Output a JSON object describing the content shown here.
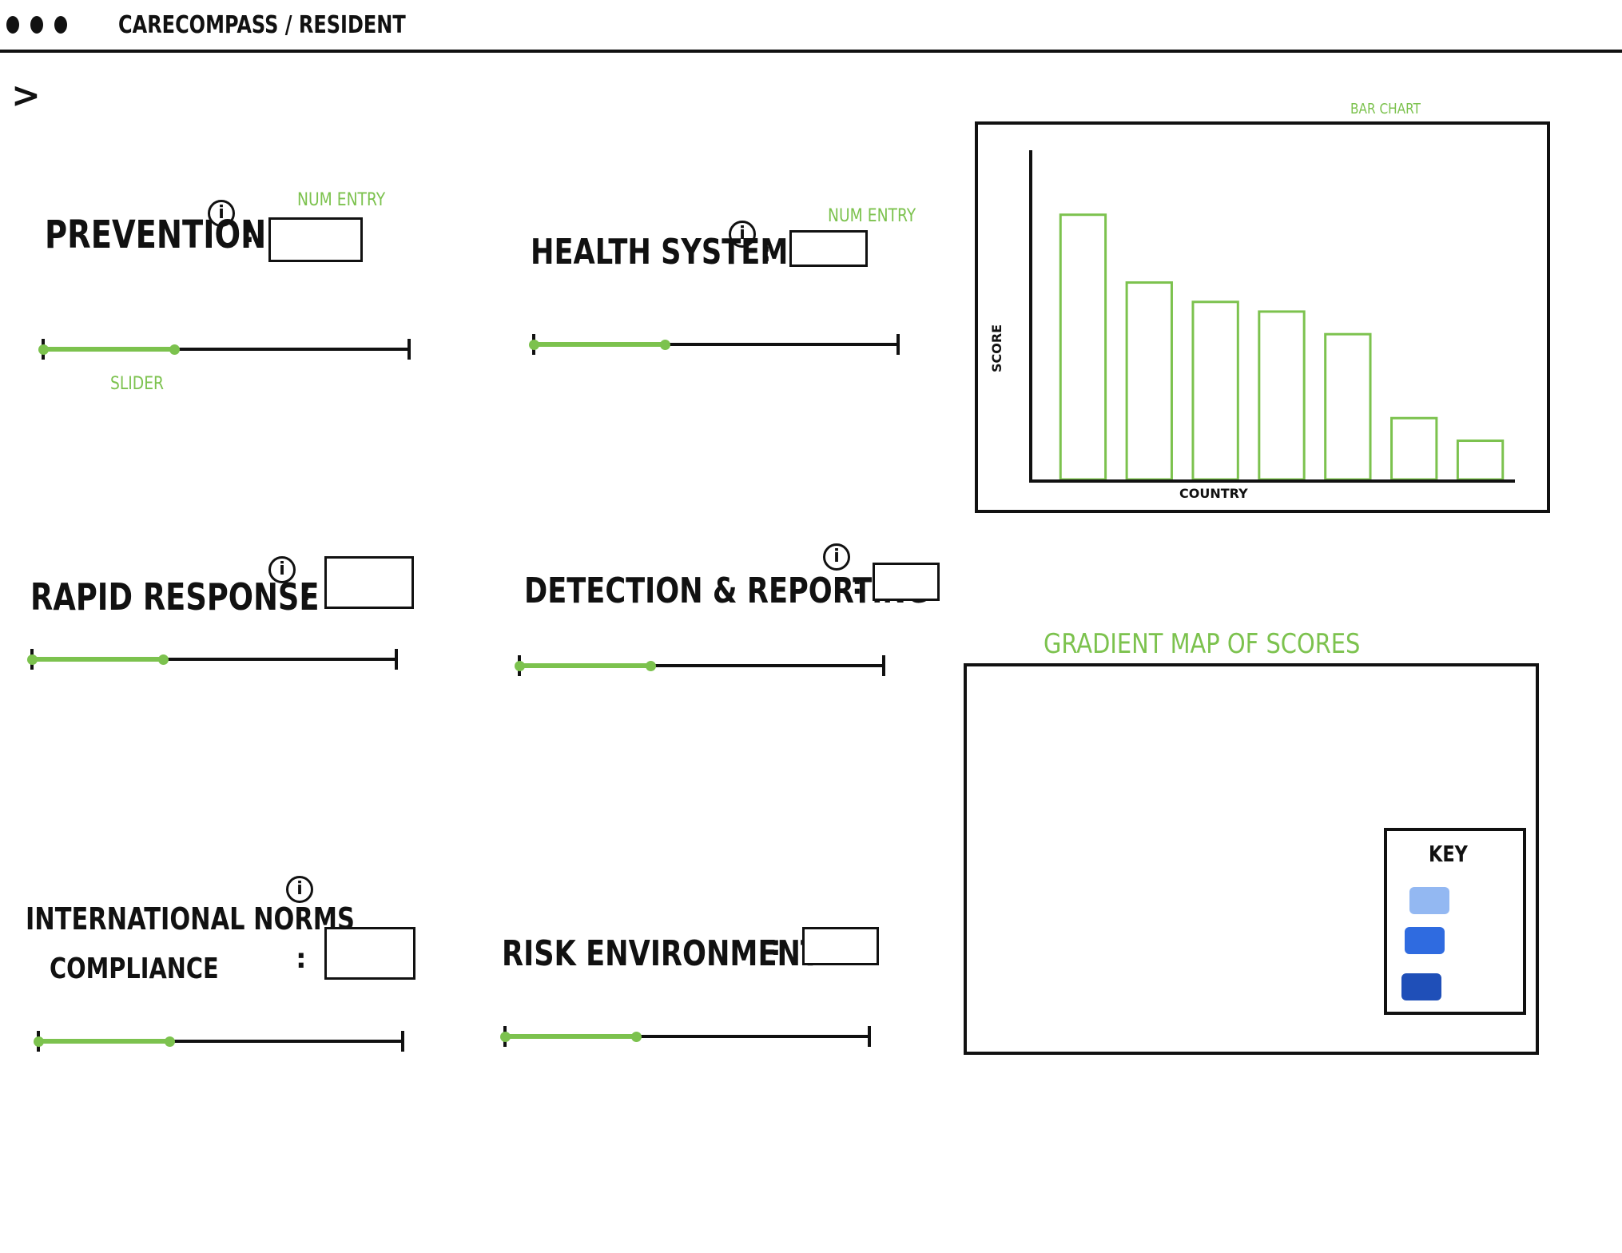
{
  "window": {
    "title": "CARECOMPASS / RESIDENT",
    "controls": [
      "dot",
      "dot",
      "dot"
    ]
  },
  "nav": {
    "expand_icon": "chevron-right-icon",
    "expand_glyph": ">"
  },
  "annotations": {
    "num_entry": "NUM ENTRY",
    "slider": "SLIDER",
    "bar_chart": "BAR CHART",
    "gradient_map": "GRADIENT MAP OF SCORES"
  },
  "indicators": {
    "prevention": {
      "label": "PREVENTION",
      "value": "",
      "slider_fraction": 0.36
    },
    "health_system": {
      "label": "HEALTH SYSTEM",
      "value": "",
      "slider_fraction": 0.36
    },
    "rapid_response": {
      "label": "RAPID RESPONSE",
      "value": "",
      "slider_fraction": 0.36
    },
    "detection_reporting": {
      "label": "DETECTION & REPORTING",
      "value": "",
      "slider_fraction": 0.36
    },
    "international_norms": {
      "label_line1": "INTERNATIONAL NORMS",
      "label_line2": "COMPLIANCE",
      "value": "",
      "slider_fraction": 0.36
    },
    "risk_environment": {
      "label": "RISK ENVIRONMENT",
      "value": "",
      "slider_fraction": 0.36
    }
  },
  "map": {
    "key_title": "KEY",
    "key_colors": [
      "#93b8f2",
      "#2f6be0",
      "#1f4fb8"
    ]
  },
  "colors": {
    "accent": "#7cc24e",
    "ink": "#111111"
  },
  "chart_data": {
    "type": "bar",
    "xlabel": "COUNTRY",
    "ylabel": "SCORE",
    "ylim": [
      0,
      100
    ],
    "values": [
      82,
      61,
      55,
      52,
      45,
      19,
      12
    ]
  }
}
